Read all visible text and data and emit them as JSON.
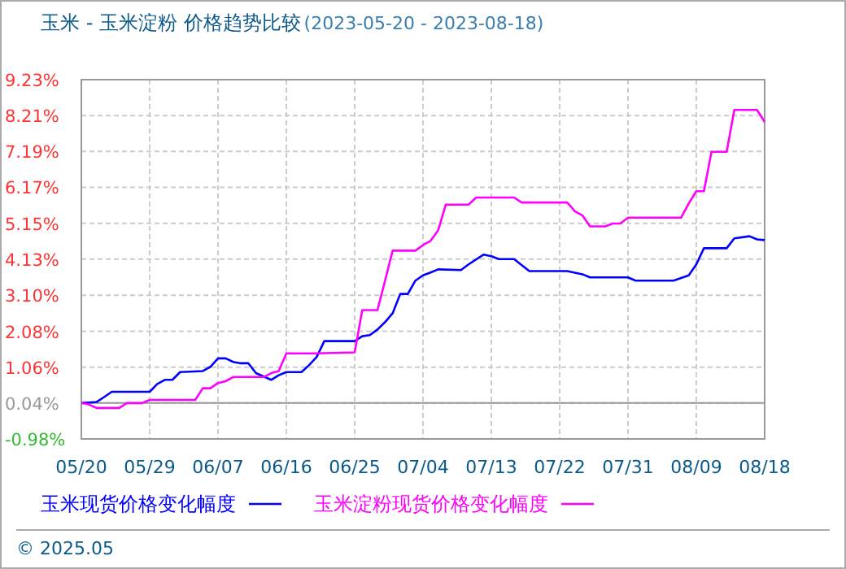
{
  "chart_data": {
    "type": "line",
    "title": "玉米 - 玉米淀粉 价格趋势比较",
    "subtitle": "(2023-05-20 - 2023-08-18)",
    "xlim": [
      "2023-05-20",
      "2023-08-18"
    ],
    "xticks": [
      {
        "value": "2023-05-20",
        "label": "05/20"
      },
      {
        "value": "2023-05-29",
        "label": "05/29"
      },
      {
        "value": "2023-06-07",
        "label": "06/07"
      },
      {
        "value": "2023-06-16",
        "label": "06/16"
      },
      {
        "value": "2023-06-25",
        "label": "06/25"
      },
      {
        "value": "2023-07-04",
        "label": "07/04"
      },
      {
        "value": "2023-07-13",
        "label": "07/13"
      },
      {
        "value": "2023-07-22",
        "label": "07/22"
      },
      {
        "value": "2023-07-31",
        "label": "07/31"
      },
      {
        "value": "2023-08-09",
        "label": "08/09"
      },
      {
        "value": "2023-08-18",
        "label": "08/18"
      }
    ],
    "ylim": [
      -0.98,
      9.23
    ],
    "yticks": [
      {
        "value": -0.98,
        "label": "-0.98%"
      },
      {
        "value": 0.04,
        "label": "0.04%"
      },
      {
        "value": 1.06,
        "label": "1.06%"
      },
      {
        "value": 2.08,
        "label": "2.08%"
      },
      {
        "value": 3.1,
        "label": "3.10%"
      },
      {
        "value": 4.13,
        "label": "4.13%"
      },
      {
        "value": 5.15,
        "label": "5.15%"
      },
      {
        "value": 6.17,
        "label": "6.17%"
      },
      {
        "value": 7.19,
        "label": "7.19%"
      },
      {
        "value": 8.21,
        "label": "8.21%"
      },
      {
        "value": 9.23,
        "label": "9.23%"
      }
    ],
    "grid": true,
    "legend": "bottom",
    "line_style": "solid",
    "ref_lines": [
      {
        "axis": "y",
        "value": 0.04,
        "color": "#999999"
      }
    ],
    "series": [
      {
        "name": "玉米现货价格变化幅度",
        "color": "#0000ff",
        "x": [
          "2023-05-20",
          "2023-05-22",
          "2023-05-23",
          "2023-05-24",
          "2023-05-29",
          "2023-05-30",
          "2023-05-31",
          "2023-06-01",
          "2023-06-02",
          "2023-06-05",
          "2023-06-06",
          "2023-06-07",
          "2023-06-08",
          "2023-06-09",
          "2023-06-10",
          "2023-06-11",
          "2023-06-12",
          "2023-06-14",
          "2023-06-15",
          "2023-06-16",
          "2023-06-18",
          "2023-06-19",
          "2023-06-20",
          "2023-06-21",
          "2023-06-25",
          "2023-06-26",
          "2023-06-27",
          "2023-06-28",
          "2023-06-29",
          "2023-06-30",
          "2023-07-01",
          "2023-07-02",
          "2023-07-03",
          "2023-07-04",
          "2023-07-05",
          "2023-07-06",
          "2023-07-09",
          "2023-07-10",
          "2023-07-12",
          "2023-07-13",
          "2023-07-14",
          "2023-07-16",
          "2023-07-18",
          "2023-07-23",
          "2023-07-25",
          "2023-07-26",
          "2023-07-31",
          "2023-08-01",
          "2023-08-06",
          "2023-08-08",
          "2023-08-09",
          "2023-08-10",
          "2023-08-13",
          "2023-08-14",
          "2023-08-16",
          "2023-08-17",
          "2023-08-18"
        ],
        "values": [
          0.04,
          0.07,
          0.21,
          0.36,
          0.36,
          0.58,
          0.7,
          0.7,
          0.92,
          0.95,
          1.07,
          1.31,
          1.31,
          1.21,
          1.17,
          1.17,
          0.89,
          0.7,
          0.83,
          0.92,
          0.92,
          1.12,
          1.35,
          1.8,
          1.8,
          1.94,
          1.97,
          2.13,
          2.34,
          2.59,
          3.14,
          3.14,
          3.52,
          3.67,
          3.75,
          3.84,
          3.82,
          3.98,
          4.26,
          4.21,
          4.13,
          4.13,
          3.79,
          3.79,
          3.7,
          3.61,
          3.61,
          3.52,
          3.52,
          3.67,
          3.98,
          4.44,
          4.44,
          4.72,
          4.78,
          4.69,
          4.67
        ]
      },
      {
        "name": "玉米淀粉现货价格变化幅度",
        "color": "#ff00ff",
        "x": [
          "2023-05-20",
          "2023-05-21",
          "2023-05-22",
          "2023-05-25",
          "2023-05-26",
          "2023-05-28",
          "2023-05-29",
          "2023-06-04",
          "2023-06-05",
          "2023-06-06",
          "2023-06-07",
          "2023-06-08",
          "2023-06-09",
          "2023-06-13",
          "2023-06-14",
          "2023-06-15",
          "2023-06-16",
          "2023-06-20",
          "2023-06-25",
          "2023-06-26",
          "2023-06-28",
          "2023-06-29",
          "2023-06-30",
          "2023-07-03",
          "2023-07-04",
          "2023-07-05",
          "2023-07-06",
          "2023-07-07",
          "2023-07-10",
          "2023-07-11",
          "2023-07-16",
          "2023-07-17",
          "2023-07-23",
          "2023-07-24",
          "2023-07-25",
          "2023-07-26",
          "2023-07-28",
          "2023-07-29",
          "2023-07-30",
          "2023-07-31",
          "2023-08-07",
          "2023-08-08",
          "2023-08-09",
          "2023-08-10",
          "2023-08-11",
          "2023-08-13",
          "2023-08-14",
          "2023-08-17",
          "2023-08-18"
        ],
        "values": [
          0.04,
          0.0,
          -0.1,
          -0.1,
          0.04,
          0.04,
          0.13,
          0.13,
          0.46,
          0.46,
          0.61,
          0.66,
          0.78,
          0.78,
          0.89,
          0.95,
          1.45,
          1.45,
          1.48,
          2.68,
          2.68,
          3.52,
          4.37,
          4.37,
          4.53,
          4.65,
          4.95,
          5.68,
          5.68,
          5.88,
          5.88,
          5.74,
          5.74,
          5.49,
          5.37,
          5.06,
          5.06,
          5.14,
          5.14,
          5.31,
          5.31,
          5.71,
          6.06,
          6.06,
          7.18,
          7.18,
          8.37,
          8.37,
          8.03
        ]
      }
    ],
    "annotations": [
      "© 2025.05"
    ]
  }
}
